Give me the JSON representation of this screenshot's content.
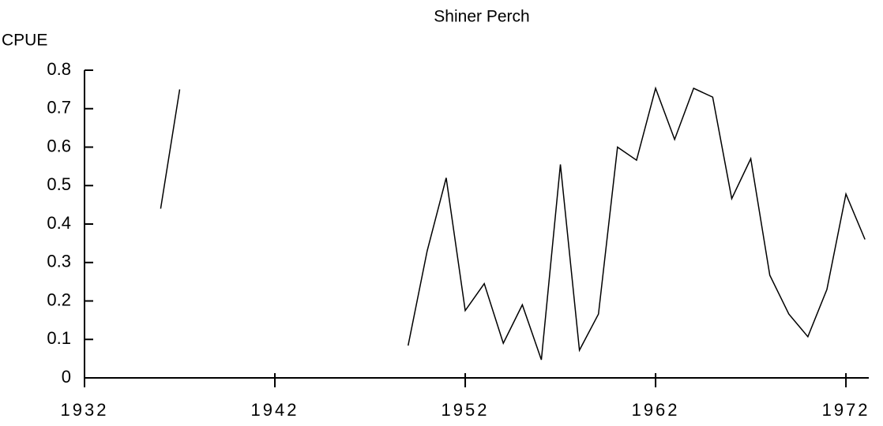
{
  "chart_data": {
    "type": "line",
    "title": "Shiner Perch",
    "y_label": "CPUE",
    "x": [
      1936,
      1937,
      1938,
      1949,
      1950,
      1951,
      1952,
      1953,
      1954,
      1955,
      1956,
      1957,
      1958,
      1959,
      1960,
      1961,
      1962,
      1963,
      1964,
      1965,
      1966,
      1967,
      1968,
      1969,
      1970,
      1971,
      1972,
      1973
    ],
    "series": [
      {
        "name": "Shiner Perch",
        "color": "#000000",
        "values": [
          0.44,
          0.75,
          null,
          0.084,
          0.33,
          0.52,
          0.175,
          0.245,
          0.09,
          0.19,
          0.047,
          0.555,
          0.072,
          0.166,
          0.6,
          0.566,
          0.753,
          0.62,
          0.753,
          0.73,
          0.466,
          0.57,
          0.267,
          0.166,
          0.107,
          0.23,
          0.478,
          0.36
        ]
      }
    ],
    "xlim": [
      1932,
      1973.2
    ],
    "xticks": [
      1932,
      1942,
      1952,
      1962,
      1972
    ],
    "ylim": [
      0,
      0.8
    ],
    "yticks": [
      0,
      0.1,
      0.2,
      0.3,
      0.4,
      0.5,
      0.6,
      0.7,
      0.8
    ],
    "grid": false
  }
}
